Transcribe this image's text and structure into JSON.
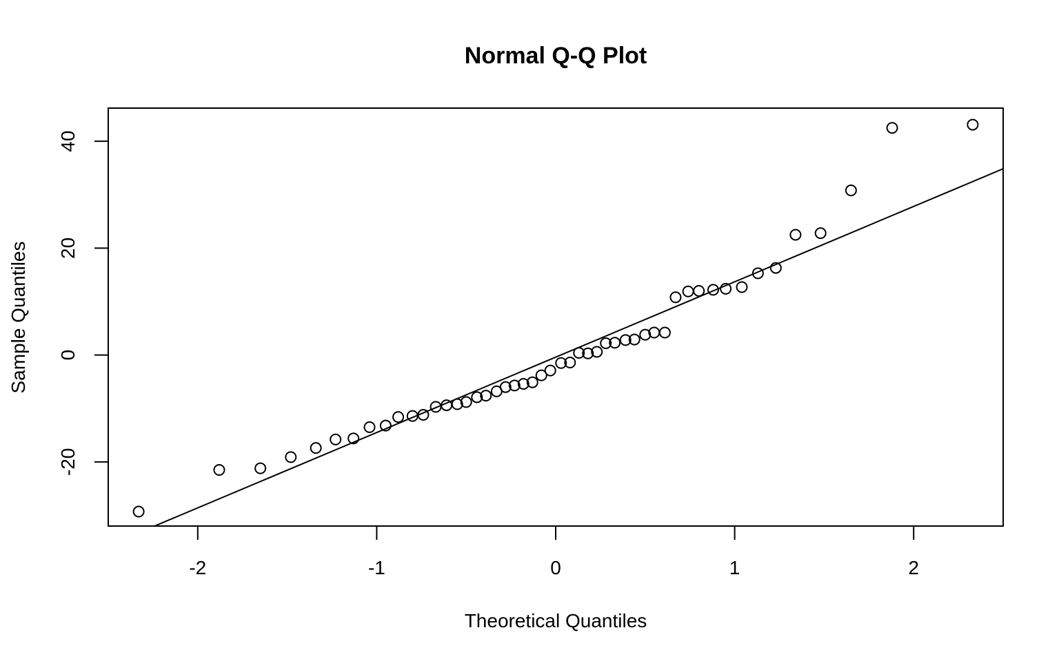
{
  "chart_data": {
    "type": "scatter",
    "title": "Normal Q-Q Plot",
    "xlabel": "Theoretical Quantiles",
    "ylabel": "Sample Quantiles",
    "xlim": [
      -2.5,
      2.5
    ],
    "ylim": [
      -32,
      46.2
    ],
    "xticks": [
      -2,
      -1,
      0,
      1,
      2
    ],
    "xtick_labels": [
      "-2",
      "-1",
      "0",
      "1",
      "2"
    ],
    "yticks": [
      -20,
      0,
      20,
      40
    ],
    "ytick_labels": [
      "-20",
      "0",
      "20",
      "40"
    ],
    "grid": false,
    "legend": "none",
    "marker": "open-circle",
    "series": [
      {
        "points": [
          {
            "x": -2.33,
            "y": -29.3
          },
          {
            "x": -1.88,
            "y": -21.5
          },
          {
            "x": -1.65,
            "y": -21.2
          },
          {
            "x": -1.48,
            "y": -19.1
          },
          {
            "x": -1.34,
            "y": -17.4
          },
          {
            "x": -1.23,
            "y": -15.8
          },
          {
            "x": -1.13,
            "y": -15.6
          },
          {
            "x": -1.04,
            "y": -13.5
          },
          {
            "x": -0.95,
            "y": -13.2
          },
          {
            "x": -0.88,
            "y": -11.6
          },
          {
            "x": -0.8,
            "y": -11.4
          },
          {
            "x": -0.74,
            "y": -11.2
          },
          {
            "x": -0.67,
            "y": -9.7
          },
          {
            "x": -0.61,
            "y": -9.4
          },
          {
            "x": -0.55,
            "y": -9.2
          },
          {
            "x": -0.5,
            "y": -8.8
          },
          {
            "x": -0.44,
            "y": -7.9
          },
          {
            "x": -0.39,
            "y": -7.6
          },
          {
            "x": -0.33,
            "y": -6.8
          },
          {
            "x": -0.28,
            "y": -6.0
          },
          {
            "x": -0.23,
            "y": -5.7
          },
          {
            "x": -0.18,
            "y": -5.4
          },
          {
            "x": -0.13,
            "y": -5.1
          },
          {
            "x": -0.08,
            "y": -3.8
          },
          {
            "x": -0.03,
            "y": -2.9
          },
          {
            "x": 0.03,
            "y": -1.5
          },
          {
            "x": 0.08,
            "y": -1.4
          },
          {
            "x": 0.13,
            "y": 0.4
          },
          {
            "x": 0.18,
            "y": 0.3
          },
          {
            "x": 0.23,
            "y": 0.6
          },
          {
            "x": 0.28,
            "y": 2.2
          },
          {
            "x": 0.33,
            "y": 2.3
          },
          {
            "x": 0.39,
            "y": 2.8
          },
          {
            "x": 0.44,
            "y": 2.9
          },
          {
            "x": 0.5,
            "y": 3.8
          },
          {
            "x": 0.55,
            "y": 4.2
          },
          {
            "x": 0.61,
            "y": 4.2
          },
          {
            "x": 0.67,
            "y": 10.8
          },
          {
            "x": 0.74,
            "y": 11.9
          },
          {
            "x": 0.8,
            "y": 12.0
          },
          {
            "x": 0.88,
            "y": 12.2
          },
          {
            "x": 0.95,
            "y": 12.4
          },
          {
            "x": 1.04,
            "y": 12.7
          },
          {
            "x": 1.13,
            "y": 15.3
          },
          {
            "x": 1.23,
            "y": 16.3
          },
          {
            "x": 1.34,
            "y": 22.5
          },
          {
            "x": 1.48,
            "y": 22.8
          },
          {
            "x": 1.65,
            "y": 30.8
          },
          {
            "x": 1.88,
            "y": 42.5
          },
          {
            "x": 2.33,
            "y": 43.1
          }
        ]
      }
    ],
    "reference_line": {
      "intercept": -0.4,
      "slope": 14.1
    },
    "colors": {
      "points": "#000000",
      "line": "#000000",
      "frame": "#000000",
      "background": "#ffffff"
    }
  }
}
